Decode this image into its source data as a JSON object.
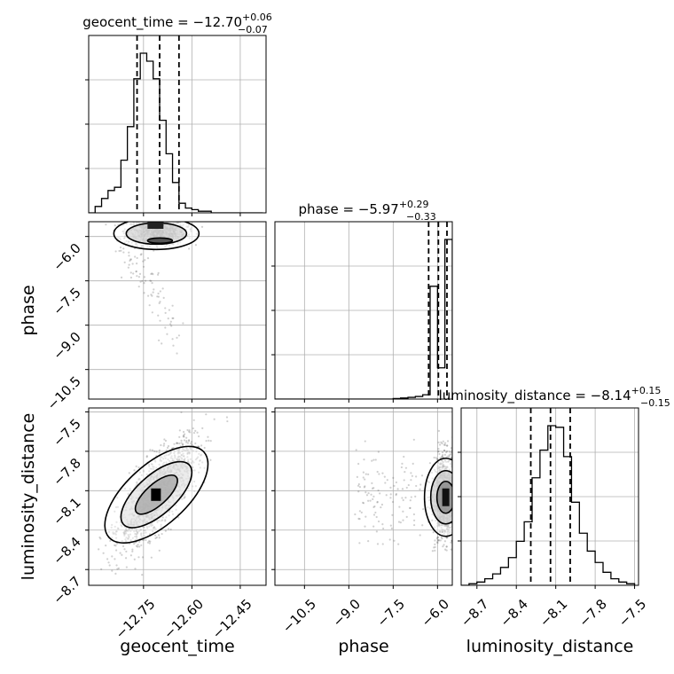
{
  "chart_data": {
    "type": "corner",
    "parameters": [
      "geocent_time",
      "phase",
      "luminosity_distance"
    ],
    "titles": [
      {
        "prefix": "geocent_time = −12.70",
        "plus": "+0.06",
        "minus": "−0.07"
      },
      {
        "prefix": "phase = −5.97",
        "plus": "+0.29",
        "minus": "−0.33"
      },
      {
        "prefix": "luminosity_distance = −8.14",
        "plus": "+0.15",
        "minus": "−0.15"
      }
    ],
    "axes": {
      "geocent_time": {
        "range": [
          -12.92,
          -12.37
        ],
        "ticks": [
          -12.75,
          -12.6,
          -12.45
        ],
        "tick_labels": [
          "−12.75",
          "−12.60",
          "−12.45"
        ]
      },
      "phase": {
        "range": [
          -11.5,
          -5.5
        ],
        "ticks": [
          -10.5,
          -9.0,
          -7.5,
          -6.0
        ],
        "tick_labels": [
          "−10.5",
          "−9.0",
          "−7.5",
          "−6.0"
        ]
      },
      "luminosity_distance": {
        "range": [
          -8.82,
          -7.47
        ],
        "ticks": [
          -8.7,
          -8.4,
          -8.1,
          -7.8,
          -7.5
        ],
        "tick_labels": [
          "−8.7",
          "−8.4",
          "−8.1",
          "−7.8",
          "−7.5"
        ]
      }
    },
    "quantiles": {
      "geocent_time": [
        -12.77,
        -12.7,
        -12.64
      ],
      "phase": [
        -6.3,
        -5.97,
        -5.68
      ],
      "luminosity_distance": [
        -8.29,
        -8.14,
        -7.99
      ]
    },
    "histograms": {
      "geocent_time": {
        "edges": [
          -12.92,
          -12.9,
          -12.88,
          -12.86,
          -12.84,
          -12.82,
          -12.8,
          -12.78,
          -12.76,
          -12.74,
          -12.72,
          -12.7,
          -12.68,
          -12.66,
          -12.64,
          -12.62,
          -12.6,
          -12.58,
          -12.56,
          -12.54,
          -12.52,
          -12.5,
          -12.48,
          -12.46,
          -12.44,
          -12.42,
          -12.4,
          -12.38
        ],
        "counts": [
          0,
          4,
          9,
          14,
          16,
          33,
          54,
          84,
          100,
          95,
          84,
          58,
          37,
          19,
          6,
          3,
          2,
          1,
          1,
          0,
          0,
          0,
          0,
          0,
          0,
          0,
          0
        ]
      },
      "phase": {
        "edges": [
          -11.5,
          -11.25,
          -11.0,
          -10.75,
          -10.5,
          -10.25,
          -10.0,
          -9.75,
          -9.5,
          -9.25,
          -9.0,
          -8.75,
          -8.5,
          -8.25,
          -8.0,
          -7.75,
          -7.5,
          -7.25,
          -7.0,
          -6.75,
          -6.5,
          -6.25,
          -6.0,
          -5.75,
          -5.5
        ],
        "counts": [
          0,
          0,
          0,
          0,
          0,
          0,
          0,
          0,
          0,
          0,
          0,
          0,
          0,
          0,
          0,
          0,
          0.3,
          0.6,
          1,
          1.5,
          2.5,
          65,
          18,
          92
        ]
      },
      "luminosity_distance": {
        "edges": [
          -8.82,
          -8.76,
          -8.7,
          -8.64,
          -8.58,
          -8.52,
          -8.46,
          -8.4,
          -8.34,
          -8.28,
          -8.22,
          -8.16,
          -8.1,
          -8.04,
          -7.98,
          -7.92,
          -7.86,
          -7.8,
          -7.74,
          -7.68,
          -7.62,
          -7.56,
          -7.5
        ],
        "counts": [
          0,
          1,
          2,
          4,
          7,
          11,
          17,
          27,
          39,
          66,
          83,
          98,
          97,
          79,
          51,
          32,
          21,
          14,
          8,
          4,
          2,
          1
        ]
      }
    },
    "xlabels": [
      "geocent_time",
      "phase",
      "luminosity_distance"
    ],
    "ylabels": [
      "",
      "phase",
      "luminosity_distance"
    ],
    "grid": true,
    "colors": {
      "line": "#000000",
      "points": "#555555",
      "grid": "#b0b0b0",
      "frame": "#000000",
      "background": "#ffffff"
    }
  }
}
